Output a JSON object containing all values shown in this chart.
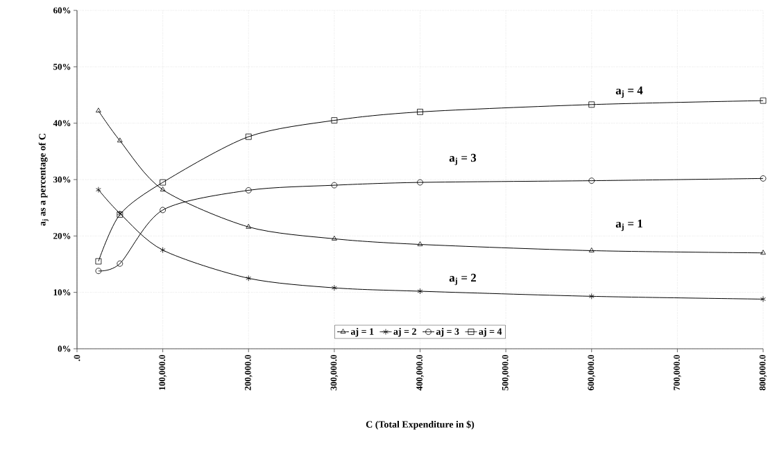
{
  "chart_data": {
    "type": "line",
    "xlabel": "C (Total Expenditure in $)",
    "ylabel": "a$_{j}$ as a percentage of  C",
    "x": [
      25000,
      50000,
      100000,
      200000,
      300000,
      400000,
      600000,
      800000
    ],
    "series": [
      {
        "name": "aj = 1",
        "color": "#000000",
        "marker": "triangle",
        "values": [
          42.2,
          36.9,
          28.2,
          21.6,
          19.5,
          18.5,
          17.4,
          17.0
        ]
      },
      {
        "name": "aj = 2",
        "color": "#000000",
        "marker": "cross",
        "values": [
          28.2,
          24.0,
          17.5,
          12.5,
          10.8,
          10.2,
          9.3,
          8.8
        ]
      },
      {
        "name": "aj = 3",
        "color": "#000000",
        "marker": "circle",
        "values": [
          13.8,
          15.1,
          24.6,
          28.1,
          29.0,
          29.5,
          29.8,
          30.2
        ]
      },
      {
        "name": "aj = 4",
        "color": "#000000",
        "marker": "square",
        "values": [
          15.5,
          23.8,
          29.5,
          37.6,
          40.5,
          42.0,
          43.3,
          44.0
        ]
      }
    ],
    "xlim": [
      0,
      800000
    ],
    "xticks": [
      {
        "value": 0,
        "label": ".0"
      },
      {
        "value": 100000,
        "label": "100,000.0"
      },
      {
        "value": 200000,
        "label": "200,000.0"
      },
      {
        "value": 300000,
        "label": "300,000.0"
      },
      {
        "value": 400000,
        "label": "400,000.0"
      },
      {
        "value": 500000,
        "label": "500,000.0"
      },
      {
        "value": 600000,
        "label": "600,000.0"
      },
      {
        "value": 700000,
        "label": "700,000.0"
      },
      {
        "value": 800000,
        "label": "800,000.0"
      }
    ],
    "ylim": [
      0,
      60
    ],
    "yticks": [
      {
        "value": 0,
        "label": "0%"
      },
      {
        "value": 10,
        "label": "10%"
      },
      {
        "value": 20,
        "label": "20%"
      },
      {
        "value": 30,
        "label": "30%"
      },
      {
        "value": 40,
        "label": "40%"
      },
      {
        "value": 50,
        "label": "50%"
      },
      {
        "value": 60,
        "label": "60%"
      }
    ],
    "annotations": [
      "a$_{j}$ = 4",
      "a$_{j}$ = 3",
      "a$_{j}$ = 1",
      "a$_{j}$ = 2"
    ],
    "grid": true,
    "legend": "bottom",
    "line_style": "solid"
  }
}
